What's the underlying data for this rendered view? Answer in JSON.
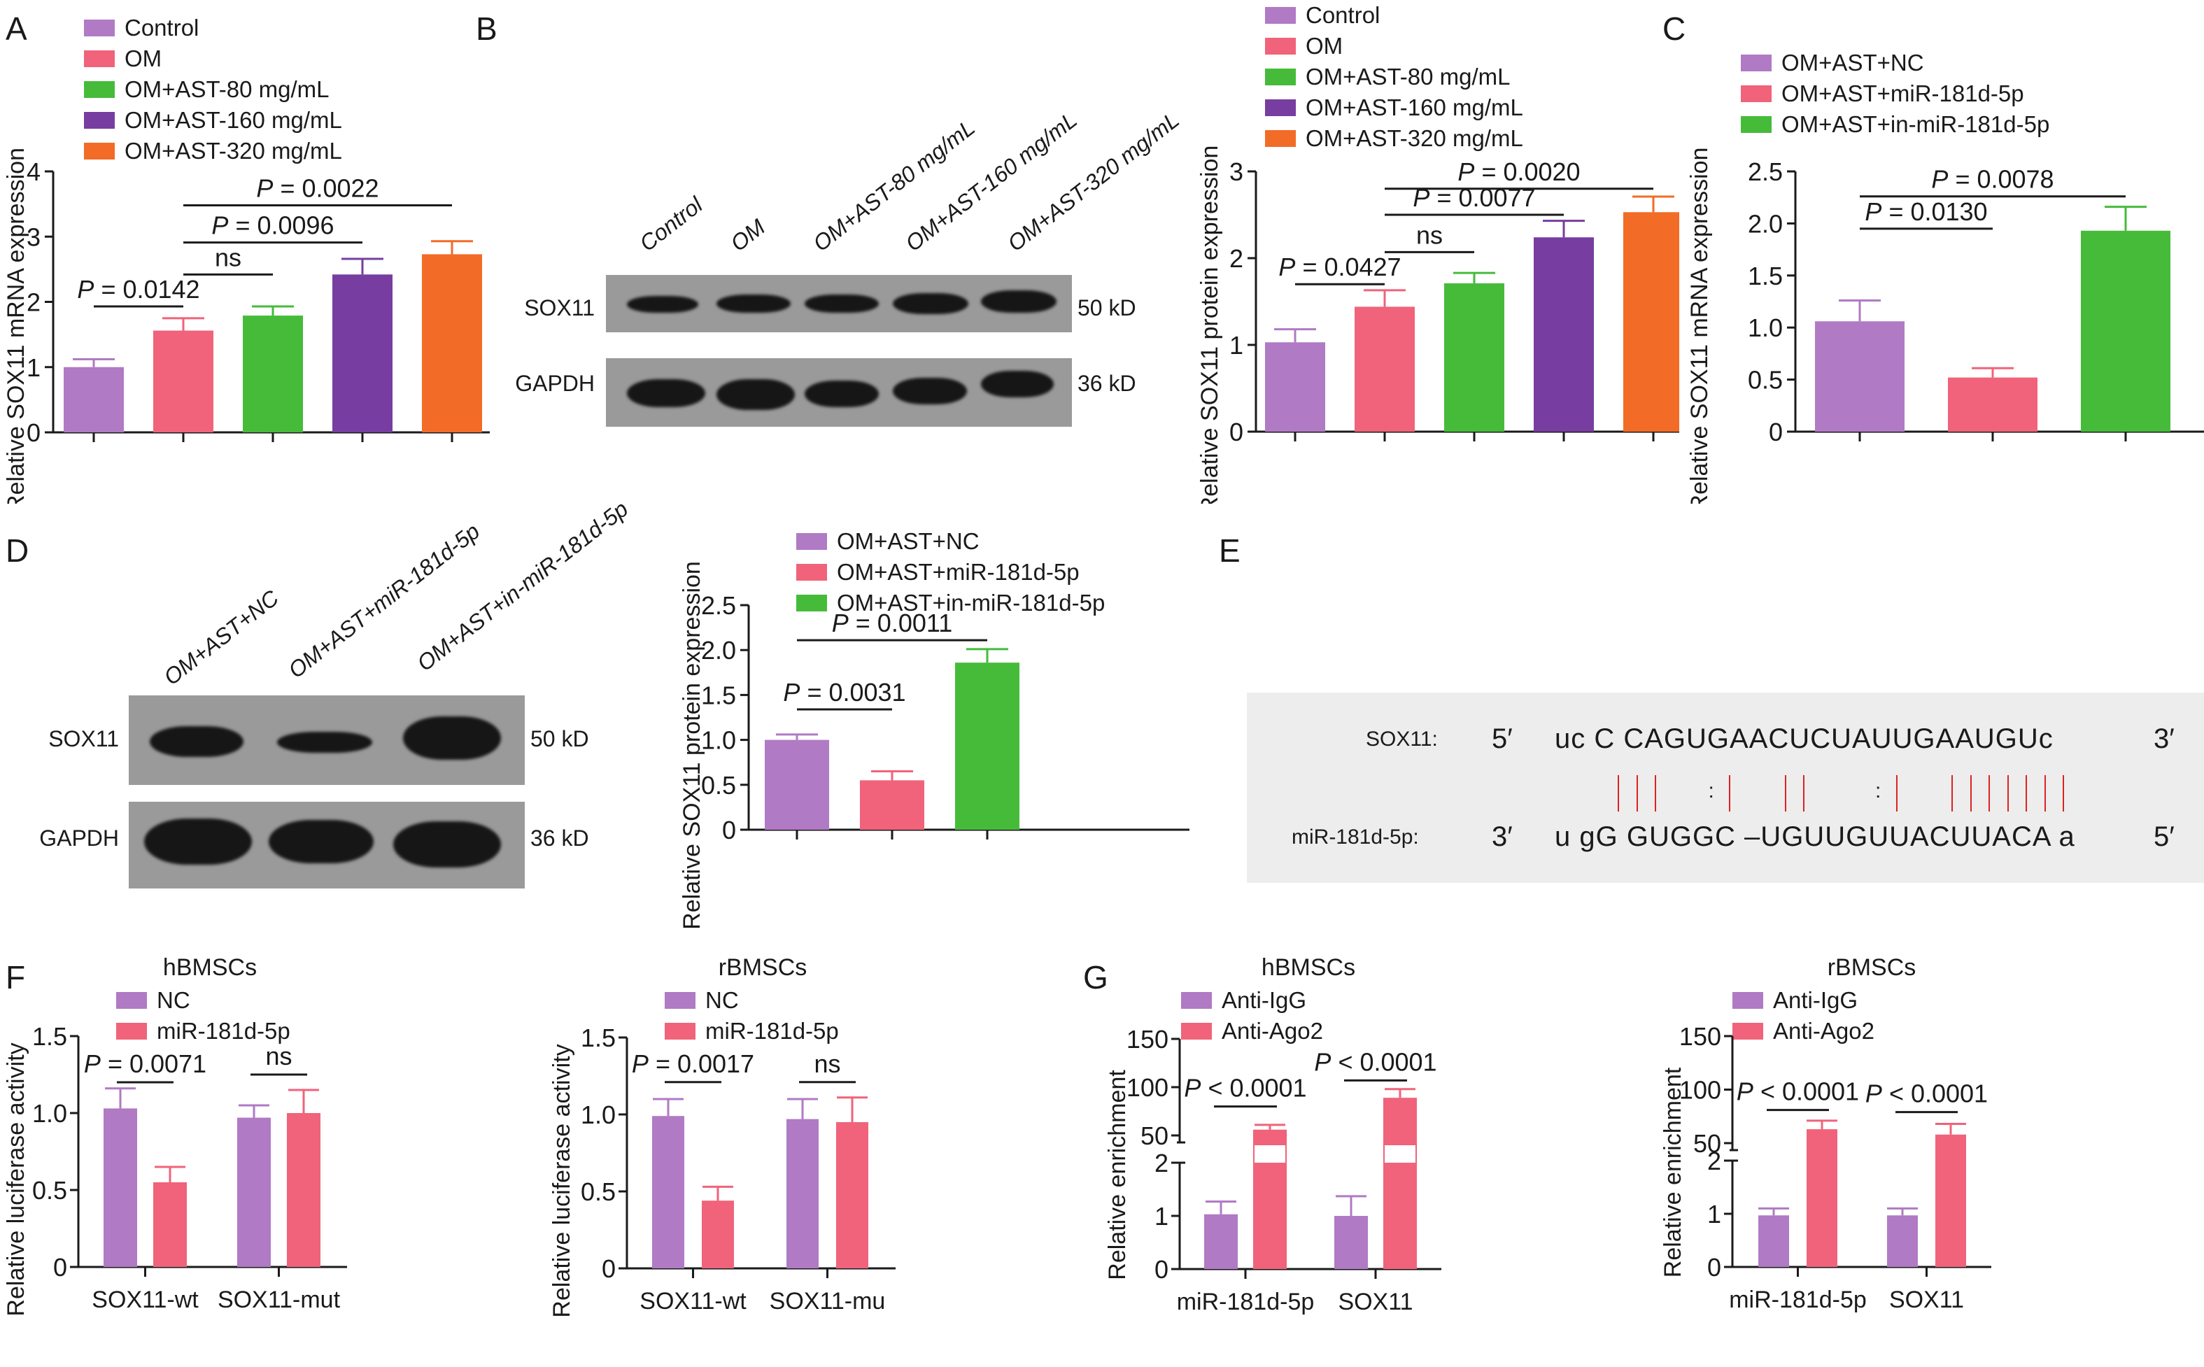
{
  "colors": {
    "purple": "#b07ac4",
    "pink": "#f0637a",
    "green": "#46bb3a",
    "dark_purple": "#773da0",
    "orange": "#f26b27",
    "axis": "#1a1a1a",
    "pairing_line": "#d22222",
    "blot_bg": "#9a9a9a",
    "seq_box_bg": "#ededed"
  },
  "panel_labels": {
    "A": "A",
    "B": "B",
    "C": "C",
    "D": "D",
    "E": "E",
    "F": "F",
    "G": "G"
  },
  "blot_B": {
    "lanes": [
      "Control",
      "OM",
      "OM+AST-80 mg/mL",
      "OM+AST-160 mg/mL",
      "OM+AST-320 mg/mL"
    ],
    "rows": [
      {
        "protein": "SOX11",
        "size": "50 kD"
      },
      {
        "protein": "GAPDH",
        "size": "36 kD"
      }
    ]
  },
  "blot_D": {
    "lanes": [
      "OM+AST+NC",
      "OM+AST+miR-181d-5p",
      "OM+AST+in-miR-181d-5p"
    ],
    "rows": [
      {
        "protein": "SOX11",
        "size": "50 kD"
      },
      {
        "protein": "GAPDH",
        "size": "36 kD"
      }
    ]
  },
  "panel_E": {
    "top_label": "SOX11:",
    "top_5": "5′",
    "top_seq": "uc C CAGUGAACUCUAUUGAAUGUc",
    "top_3": "3′",
    "bottom_label": "miR-181d-5p:",
    "bottom_3": "3′",
    "bottom_seq": "u gG GUGGC –UGUUGUUACUUACA a",
    "bottom_5": "5′",
    "pairing": "|||  :|  ||   :|  |||||||",
    "wobble_glyph": ":"
  },
  "chart_data": [
    {
      "id": "A",
      "type": "bar",
      "title": "",
      "ylabel": "Relative SOX11 mRNA expression",
      "xlabel": "",
      "ylim": [
        0,
        4
      ],
      "yticks": [
        "0",
        "1",
        "2",
        "3",
        "4"
      ],
      "legend": [
        "Control",
        "OM",
        "OM+AST-80 mg/mL",
        "OM+AST-160 mg/mL",
        "OM+AST-320 mg/mL"
      ],
      "legend_position": "top-left",
      "categories": [
        "Control",
        "OM",
        "OM+AST-80 mg/mL",
        "OM+AST-160 mg/mL",
        "OM+AST-320 mg/mL"
      ],
      "values": [
        1.0,
        1.56,
        1.79,
        2.42,
        2.73
      ],
      "error_upper": [
        1.12,
        1.75,
        1.93,
        2.66,
        2.93
      ],
      "annotations": [
        {
          "text": "P = 0.0142",
          "from": 0,
          "to": 1,
          "y": 1.93
        },
        {
          "text": "ns",
          "from": 1,
          "to": 2,
          "y": 2.42
        },
        {
          "text": "P = 0.0096",
          "from": 1,
          "to": 3,
          "y": 2.91
        },
        {
          "text": "P = 0.0022",
          "from": 1,
          "to": 4,
          "y": 3.48
        }
      ]
    },
    {
      "id": "B",
      "type": "bar",
      "title": "",
      "ylabel": "Relative SOX11 protein expression",
      "xlabel": "",
      "ylim": [
        0,
        3
      ],
      "yticks": [
        "0",
        "1",
        "2",
        "3"
      ],
      "legend": [
        "Control",
        "OM",
        "OM+AST-80 mg/mL",
        "OM+AST-160 mg/mL",
        "OM+AST-320 mg/mL"
      ],
      "legend_position": "top-left",
      "categories": [
        "Control",
        "OM",
        "OM+AST-80 mg/mL",
        "OM+AST-160 mg/mL",
        "OM+AST-320 mg/mL"
      ],
      "values": [
        1.03,
        1.44,
        1.71,
        2.24,
        2.53
      ],
      "error_upper": [
        1.18,
        1.63,
        1.83,
        2.43,
        2.71
      ],
      "annotations": [
        {
          "text": "P = 0.0427",
          "from": 0,
          "to": 1,
          "y": 1.7
        },
        {
          "text": "ns",
          "from": 1,
          "to": 2,
          "y": 2.07
        },
        {
          "text": "P = 0.0077",
          "from": 1,
          "to": 3,
          "y": 2.5
        },
        {
          "text": "P = 0.0020",
          "from": 1,
          "to": 4,
          "y": 2.8
        }
      ]
    },
    {
      "id": "C",
      "type": "bar",
      "title": "",
      "ylabel": "Relative SOX11 mRNA expression",
      "xlabel": "",
      "ylim": [
        0,
        2.5
      ],
      "yticks": [
        "0",
        "0.5",
        "1.0",
        "1.5",
        "2.0",
        "2.5"
      ],
      "legend": [
        "OM+AST+NC",
        "OM+AST+miR-181d-5p",
        "OM+AST+in-miR-181d-5p"
      ],
      "legend_position": "top-left",
      "categories": [
        "OM+AST+NC",
        "OM+AST+miR-181d-5p",
        "OM+AST+in-miR-181d-5p"
      ],
      "values": [
        1.06,
        0.52,
        1.93
      ],
      "error_upper": [
        1.26,
        0.61,
        2.16
      ],
      "annotations": [
        {
          "text": "P = 0.0130",
          "from": 0,
          "to": 1,
          "y": 1.95
        },
        {
          "text": "P = 0.0078",
          "from": 0,
          "to": 2,
          "y": 2.26
        }
      ]
    },
    {
      "id": "D",
      "type": "bar",
      "title": "",
      "ylabel": "Relative SOX11 protein expression",
      "xlabel": "",
      "ylim": [
        0,
        2.5
      ],
      "yticks": [
        "0",
        "0.5",
        "1.0",
        "1.5",
        "2.0",
        "2.5"
      ],
      "legend": [
        "OM+AST+NC",
        "OM+AST+miR-181d-5p",
        "OM+AST+in-miR-181d-5p"
      ],
      "legend_position": "top-left",
      "categories": [
        "OM+AST+NC",
        "OM+AST+miR-181d-5p",
        "OM+AST+in-miR-181d-5p"
      ],
      "values": [
        1.0,
        0.55,
        1.86
      ],
      "error_upper": [
        1.06,
        0.65,
        2.01
      ],
      "annotations": [
        {
          "text": "P = 0.0031",
          "from": 0,
          "to": 1,
          "y": 1.34
        },
        {
          "text": "P = 0.0011",
          "from": 0,
          "to": 2,
          "y": 2.11
        }
      ]
    },
    {
      "id": "F-hBMSCs",
      "type": "bar",
      "title": "hBMSCs",
      "ylabel": "Relative luciferase activity",
      "xlabel": "",
      "ylim": [
        0,
        1.5
      ],
      "yticks": [
        "0",
        "0.5",
        "1.0",
        "1.5"
      ],
      "legend": [
        "NC",
        "miR-181d-5p"
      ],
      "legend_position": "top-left",
      "categories": [
        "SOX11-wt",
        "SOX11-mut"
      ],
      "series": [
        {
          "name": "NC",
          "values": [
            1.03,
            0.97
          ],
          "error_upper": [
            1.16,
            1.05
          ]
        },
        {
          "name": "miR-181d-5p",
          "values": [
            0.55,
            1.0
          ],
          "error_upper": [
            0.65,
            1.15
          ]
        }
      ],
      "annotations": [
        {
          "text": "P = 0.0071",
          "category": 0,
          "y": 1.2
        },
        {
          "text": "ns",
          "category": 1,
          "y": 1.25
        }
      ]
    },
    {
      "id": "F-rBMSCs",
      "type": "bar",
      "title": "rBMSCs",
      "ylabel": "Relative luciferase activity",
      "xlabel": "",
      "ylim": [
        0,
        1.5
      ],
      "yticks": [
        "0",
        "0.5",
        "1.0",
        "1.5"
      ],
      "legend": [
        "NC",
        "miR-181d-5p"
      ],
      "legend_position": "top-left",
      "categories": [
        "SOX11-wt",
        "SOX11-mu"
      ],
      "series": [
        {
          "name": "NC",
          "values": [
            0.99,
            0.97
          ],
          "error_upper": [
            1.1,
            1.1
          ]
        },
        {
          "name": "miR-181d-5p",
          "values": [
            0.44,
            0.95
          ],
          "error_upper": [
            0.53,
            1.11
          ]
        }
      ],
      "annotations": [
        {
          "text": "P = 0.0017",
          "category": 0,
          "y": 1.21
        },
        {
          "text": "ns",
          "category": 1,
          "y": 1.21
        }
      ]
    },
    {
      "id": "G-hBMSCs",
      "type": "bar",
      "title": "hBMSCs",
      "ylabel": "Relative enrichment",
      "xlabel": "",
      "y_axis_break": {
        "lower": [
          0,
          2
        ],
        "upper": [
          50,
          150
        ]
      },
      "yticks": [
        "0",
        "1",
        "2",
        "50",
        "100",
        "150"
      ],
      "legend": [
        "Anti-IgG",
        "Anti-Ago2"
      ],
      "legend_position": "top-left",
      "categories": [
        "miR-181d-5p",
        "SOX11"
      ],
      "series": [
        {
          "name": "Anti-IgG",
          "values": [
            1.03,
            1.0
          ],
          "error_upper": [
            1.27,
            1.37
          ]
        },
        {
          "name": "Anti-Ago2",
          "values": [
            56,
            89
          ],
          "error_upper": [
            61,
            98
          ]
        }
      ],
      "annotations": [
        {
          "text": "P < 0.0001",
          "category": 0,
          "y": 80
        },
        {
          "text": "P < 0.0001",
          "category": 1,
          "y": 107
        }
      ]
    },
    {
      "id": "G-rBMSCs",
      "type": "bar",
      "title": "rBMSCs",
      "ylabel": "Relative enrichment",
      "xlabel": "",
      "y_axis_break": {
        "lower": [
          0,
          2
        ],
        "upper": [
          50,
          150
        ]
      },
      "yticks": [
        "0",
        "1",
        "2",
        "50",
        "100",
        "150"
      ],
      "legend": [
        "Anti-IgG",
        "Anti-Ago2"
      ],
      "legend_position": "top-left",
      "categories": [
        "miR-181d-5p",
        "SOX11"
      ],
      "series": [
        {
          "name": "Anti-IgG",
          "values": [
            0.97,
            0.97
          ],
          "error_upper": [
            1.1,
            1.1
          ]
        },
        {
          "name": "Anti-Ago2",
          "values": [
            63,
            58
          ],
          "error_upper": [
            71,
            68
          ]
        }
      ],
      "annotations": [
        {
          "text": "P < 0.0001",
          "category": 0,
          "y": 81
        },
        {
          "text": "P < 0.0001",
          "category": 1,
          "y": 79
        }
      ]
    }
  ]
}
